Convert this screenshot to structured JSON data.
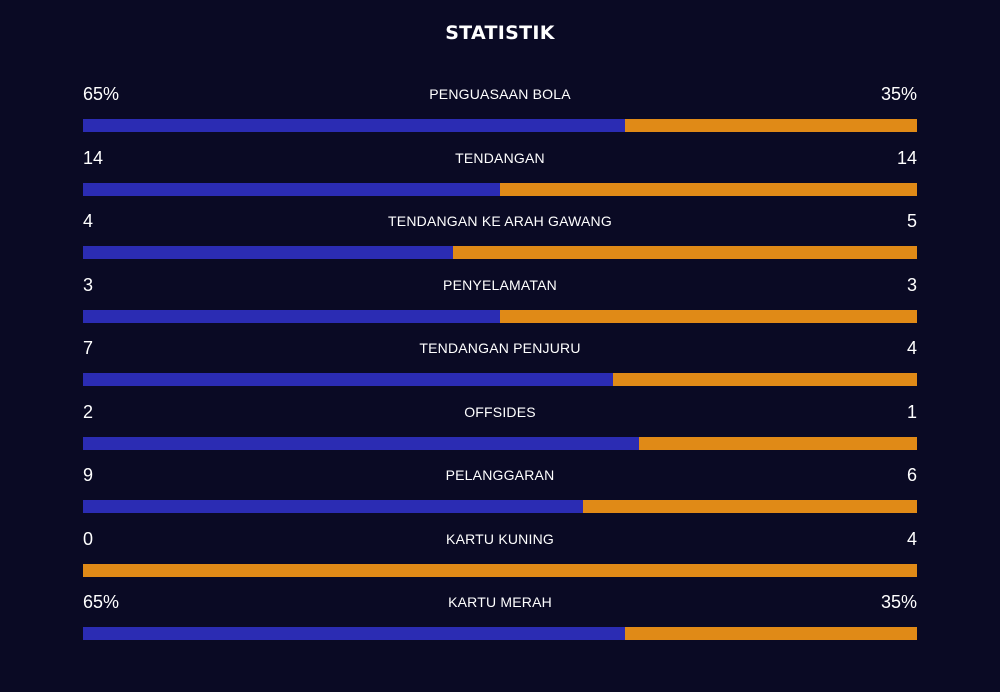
{
  "title": "STATISTIK",
  "colors": {
    "background": "#0a0a24",
    "home": "#2b2cb3",
    "away": "#e08a17",
    "text": "#ffffff"
  },
  "stats": [
    {
      "label": "PENGUASAAN BOLA",
      "left": "65%",
      "right": "35%",
      "home_share": 0.65
    },
    {
      "label": "TENDANGAN",
      "left": "14",
      "right": "14",
      "home_share": 0.5
    },
    {
      "label": "TENDANGAN KE ARAH GAWANG",
      "left": "4",
      "right": "5",
      "home_share": 0.444
    },
    {
      "label": "PENYELAMATAN",
      "left": "3",
      "right": "3",
      "home_share": 0.5
    },
    {
      "label": "TENDANGAN PENJURU",
      "left": "7",
      "right": "4",
      "home_share": 0.636
    },
    {
      "label": "OFFSIDES",
      "left": "2",
      "right": "1",
      "home_share": 0.667
    },
    {
      "label": "PELANGGARAN",
      "left": "9",
      "right": "6",
      "home_share": 0.6
    },
    {
      "label": "KARTU KUNING",
      "left": "0",
      "right": "4",
      "home_share": 0.0
    },
    {
      "label": "KARTU MERAH",
      "left": "65%",
      "right": "35%",
      "home_share": 0.65
    }
  ]
}
